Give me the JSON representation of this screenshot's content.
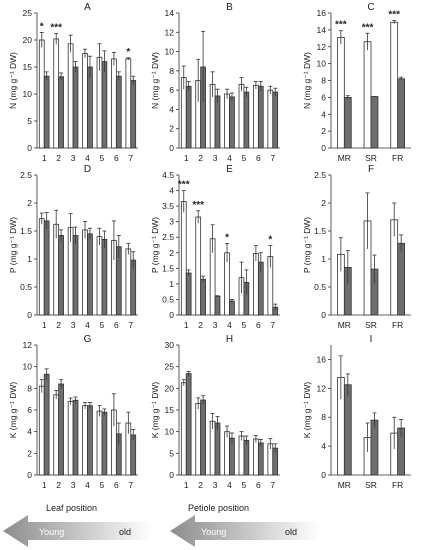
{
  "colors": {
    "open_bar": "#ffffff",
    "filled_bar": "#6e6e6e",
    "outline": "#333333",
    "arrow_dark": "#8c8c8c",
    "arrow_light": "#ffffff"
  },
  "captions": {
    "leaf_position": "Leaf position",
    "petiole_position": "Petiole position",
    "young": "Young",
    "old": "old"
  },
  "chart_data": [
    {
      "id": "A",
      "type": "bar",
      "title": "A",
      "ylabel": "N (mg g⁻¹ DW)",
      "ylim": [
        0,
        25
      ],
      "yticks": [
        0,
        5,
        10,
        15,
        20,
        25
      ],
      "categories": [
        "1",
        "2",
        "3",
        "4",
        "5",
        "6",
        "7"
      ],
      "series": [
        {
          "values": [
            20.0,
            20.2,
            19.3,
            17.5,
            16.8,
            16.5,
            16.5
          ],
          "errors": [
            1.4,
            1.0,
            1.6,
            0.8,
            2.5,
            1.2,
            0.2
          ]
        },
        {
          "values": [
            13.3,
            13.2,
            15.0,
            15.0,
            16.0,
            13.3,
            12.5
          ],
          "errors": [
            0.8,
            0.7,
            1.0,
            2.0,
            2.0,
            0.8,
            0.8
          ]
        }
      ],
      "annotations": [
        "*",
        "***",
        "",
        "",
        "",
        "",
        "*"
      ]
    },
    {
      "id": "B",
      "type": "bar",
      "title": "B",
      "ylabel": "N (mg g⁻¹ DW)",
      "ylim": [
        0,
        14
      ],
      "yticks": [
        0,
        2,
        4,
        6,
        8,
        10,
        12,
        14
      ],
      "categories": [
        "1",
        "2",
        "3",
        "4",
        "5",
        "6",
        "7"
      ],
      "series": [
        {
          "values": [
            7.3,
            7.0,
            6.6,
            5.6,
            6.6,
            6.5,
            6.0
          ],
          "errors": [
            1.2,
            2.2,
            1.3,
            0.5,
            0.7,
            0.4,
            0.4
          ]
        },
        {
          "values": [
            6.4,
            8.4,
            5.4,
            5.3,
            5.8,
            6.4,
            5.8
          ],
          "errors": [
            0.5,
            3.7,
            0.7,
            0.4,
            0.5,
            0.5,
            0.4
          ]
        }
      ],
      "annotations": [
        "",
        "",
        "",
        "",
        "",
        "",
        ""
      ]
    },
    {
      "id": "C",
      "type": "bar",
      "title": "C",
      "ylabel": "N (mg g⁻¹ DW)",
      "ylim": [
        0,
        16
      ],
      "yticks": [
        0,
        2,
        4,
        6,
        8,
        10,
        12,
        14,
        16
      ],
      "categories": [
        "MR",
        "SR",
        "FR"
      ],
      "series": [
        {
          "values": [
            13.1,
            12.6,
            14.9
          ],
          "errors": [
            0.8,
            1.0,
            0.2
          ]
        },
        {
          "values": [
            6.0,
            6.1,
            8.2
          ],
          "errors": [
            0.2,
            0.0,
            0.2
          ]
        }
      ],
      "annotations": [
        "***",
        "***",
        "***"
      ]
    },
    {
      "id": "D",
      "type": "bar",
      "title": "D",
      "ylabel": "P (mg g⁻¹ DW)",
      "ylim": [
        0,
        2.5
      ],
      "yticks": [
        0,
        0.5,
        1,
        1.5,
        2,
        2.5
      ],
      "categories": [
        "1",
        "2",
        "3",
        "4",
        "5",
        "6",
        "7"
      ],
      "series": [
        {
          "values": [
            1.72,
            1.62,
            1.56,
            1.52,
            1.4,
            1.33,
            1.18
          ],
          "errors": [
            0.1,
            0.25,
            0.25,
            0.15,
            0.15,
            0.35,
            0.1
          ]
        },
        {
          "values": [
            1.68,
            1.42,
            1.42,
            1.45,
            1.35,
            1.22,
            0.98
          ],
          "errors": [
            0.15,
            0.1,
            0.15,
            0.1,
            0.15,
            0.2,
            0.15
          ]
        }
      ],
      "annotations": [
        "",
        "",
        "",
        "",
        "",
        "",
        ""
      ]
    },
    {
      "id": "E",
      "type": "bar",
      "title": "E",
      "ylabel": "P (mg g⁻¹ DW)",
      "ylim": [
        0,
        4.5
      ],
      "yticks": [
        0,
        0.5,
        1,
        1.5,
        2,
        2.5,
        3,
        3.5,
        4,
        4.5
      ],
      "categories": [
        "1",
        "2",
        "3",
        "4",
        "5",
        "6",
        "7"
      ],
      "series": [
        {
          "values": [
            3.65,
            3.15,
            2.45,
            2.0,
            1.2,
            1.98,
            1.88
          ],
          "errors": [
            0.35,
            0.2,
            0.45,
            0.3,
            0.5,
            0.25,
            0.35
          ]
        },
        {
          "values": [
            1.35,
            1.15,
            0.6,
            0.45,
            1.05,
            1.7,
            0.25
          ],
          "errors": [
            0.1,
            0.1,
            0.02,
            0.05,
            0.4,
            0.3,
            0.1
          ]
        }
      ],
      "annotations": [
        "***",
        "***",
        "",
        "*",
        "",
        "",
        "*"
      ]
    },
    {
      "id": "F",
      "type": "bar",
      "title": "F",
      "ylabel": "P (mg g⁻¹ DW)",
      "ylim": [
        0,
        2.5
      ],
      "yticks": [
        0,
        0.5,
        1,
        1.5,
        2,
        2.5
      ],
      "categories": [
        "MR",
        "SR",
        "FR"
      ],
      "series": [
        {
          "values": [
            1.08,
            1.68,
            1.7
          ],
          "errors": [
            0.3,
            0.5,
            0.3
          ]
        },
        {
          "values": [
            0.85,
            0.82,
            1.28
          ],
          "errors": [
            0.3,
            0.25,
            0.15
          ]
        }
      ],
      "annotations": [
        "",
        "",
        ""
      ]
    },
    {
      "id": "G",
      "type": "bar",
      "title": "G",
      "ylabel": "K (mg g⁻¹ DW)",
      "ylim": [
        0,
        12
      ],
      "yticks": [
        0,
        2,
        4,
        6,
        8,
        10,
        12
      ],
      "categories": [
        "1",
        "2",
        "3",
        "4",
        "5",
        "6",
        "7"
      ],
      "series": [
        {
          "values": [
            8.2,
            7.4,
            6.8,
            6.4,
            5.9,
            6.0,
            4.8
          ],
          "errors": [
            0.6,
            0.4,
            0.3,
            0.3,
            0.5,
            1.5,
            1.0
          ]
        },
        {
          "values": [
            9.3,
            8.4,
            6.9,
            6.4,
            5.8,
            3.8,
            3.7
          ],
          "errors": [
            0.5,
            0.4,
            0.3,
            0.3,
            0.3,
            1.0,
            0.5
          ]
        }
      ],
      "annotations": [
        "",
        "",
        "",
        "",
        "",
        "",
        ""
      ]
    },
    {
      "id": "H",
      "type": "bar",
      "title": "H",
      "ylabel": "K (mg g⁻¹ DW)",
      "ylim": [
        0,
        30
      ],
      "yticks": [
        0,
        5,
        10,
        15,
        20,
        25,
        30
      ],
      "categories": [
        "1",
        "2",
        "3",
        "4",
        "5",
        "6",
        "7"
      ],
      "series": [
        {
          "values": [
            21.3,
            16.5,
            12.4,
            10.0,
            9.0,
            8.3,
            7.2
          ],
          "errors": [
            0.7,
            1.3,
            1.8,
            1.3,
            1.0,
            0.8,
            1.2
          ]
        },
        {
          "values": [
            23.4,
            17.3,
            12.0,
            8.5,
            8.0,
            7.4,
            6.2
          ],
          "errors": [
            0.5,
            1.0,
            1.5,
            1.2,
            1.0,
            0.8,
            1.0
          ]
        }
      ],
      "annotations": [
        "",
        "",
        "",
        "",
        "",
        "",
        ""
      ]
    },
    {
      "id": "I",
      "type": "bar",
      "title": "I",
      "ylabel": "K (mg g⁻¹ DW)",
      "ylim": [
        0,
        18
      ],
      "yticks": [
        0,
        4,
        8,
        12,
        16
      ],
      "categories": [
        "MR",
        "SR",
        "FR"
      ],
      "series": [
        {
          "values": [
            13.5,
            5.2,
            5.8
          ],
          "errors": [
            3.0,
            2.0,
            2.2
          ]
        },
        {
          "values": [
            12.5,
            7.6,
            6.5
          ],
          "errors": [
            1.5,
            1.0,
            1.2
          ]
        }
      ],
      "annotations": [
        "",
        "",
        ""
      ]
    }
  ]
}
